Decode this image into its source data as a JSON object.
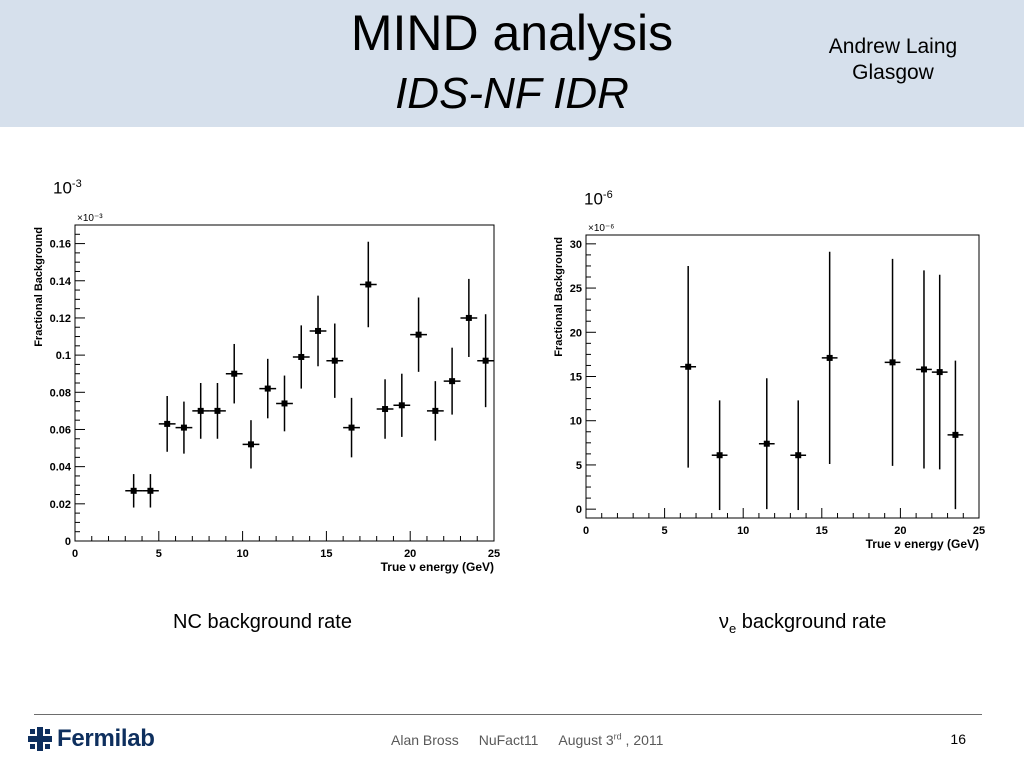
{
  "header": {
    "title": "MIND analysis",
    "subtitle": "IDS-NF IDR",
    "author_name": "Andrew Laing",
    "author_affiliation": "Glasgow"
  },
  "annotations": {
    "left_multiplier_base": "10",
    "left_multiplier_exp": "-3",
    "right_multiplier_base": "10",
    "right_multiplier_exp": "-6"
  },
  "captions": {
    "left": "NC background rate",
    "right_symbol": "ν",
    "right_subscript": "e",
    "right_text": " background rate"
  },
  "footer": {
    "logo_text": "Fermilab",
    "presenter": "Alan Bross",
    "event": "NuFact11",
    "date_prefix": "August 3",
    "date_sup": "rd",
    "date_suffix": " , 2011",
    "page_number": "16"
  },
  "colors": {
    "header_bg": "#d6e0ec",
    "logo_blue": "#0e2f5e",
    "data": "#000000"
  },
  "chart_data": [
    {
      "type": "scatter",
      "title": "",
      "xlabel": "True ν energy (GeV)",
      "ylabel": "Fractional Background",
      "scale_label": "×10⁻³",
      "xlim": [
        0,
        25
      ],
      "ylim": [
        0,
        0.17
      ],
      "xticks": [
        0,
        5,
        10,
        15,
        20,
        25
      ],
      "yticks": [
        0,
        0.02,
        0.04,
        0.06,
        0.08,
        0.1,
        0.12,
        0.14,
        0.16
      ],
      "ytick_labels": [
        "0",
        "0.02",
        "0.04",
        "0.06",
        "0.08",
        "0.1",
        "0.12",
        "0.14",
        "0.16"
      ],
      "series": [
        {
          "points": [
            {
              "x": 3.5,
              "y": 0.027,
              "err": 0.009
            },
            {
              "x": 4.5,
              "y": 0.027,
              "err": 0.009
            },
            {
              "x": 5.5,
              "y": 0.063,
              "err": 0.015
            },
            {
              "x": 6.5,
              "y": 0.061,
              "err": 0.014
            },
            {
              "x": 7.5,
              "y": 0.07,
              "err": 0.015
            },
            {
              "x": 8.5,
              "y": 0.07,
              "err": 0.015
            },
            {
              "x": 9.5,
              "y": 0.09,
              "err": 0.016
            },
            {
              "x": 10.5,
              "y": 0.052,
              "err": 0.013
            },
            {
              "x": 11.5,
              "y": 0.082,
              "err": 0.016
            },
            {
              "x": 12.5,
              "y": 0.074,
              "err": 0.015
            },
            {
              "x": 13.5,
              "y": 0.099,
              "err": 0.017
            },
            {
              "x": 14.5,
              "y": 0.113,
              "err": 0.019
            },
            {
              "x": 15.5,
              "y": 0.097,
              "err": 0.02
            },
            {
              "x": 16.5,
              "y": 0.061,
              "err": 0.016
            },
            {
              "x": 17.5,
              "y": 0.138,
              "err": 0.023
            },
            {
              "x": 18.5,
              "y": 0.071,
              "err": 0.016
            },
            {
              "x": 19.5,
              "y": 0.073,
              "err": 0.017
            },
            {
              "x": 20.5,
              "y": 0.111,
              "err": 0.02
            },
            {
              "x": 21.5,
              "y": 0.07,
              "err": 0.016
            },
            {
              "x": 22.5,
              "y": 0.086,
              "err": 0.018
            },
            {
              "x": 23.5,
              "y": 0.12,
              "err": 0.021
            },
            {
              "x": 24.5,
              "y": 0.097,
              "err": 0.025
            }
          ]
        }
      ]
    },
    {
      "type": "scatter",
      "title": "",
      "xlabel": "True ν energy (GeV)",
      "ylabel": "Fractional Background",
      "scale_label": "×10⁻⁶",
      "xlim": [
        0,
        25
      ],
      "ylim": [
        -1,
        31
      ],
      "xticks": [
        0,
        5,
        10,
        15,
        20,
        25
      ],
      "yticks": [
        0,
        5,
        10,
        15,
        20,
        25,
        30
      ],
      "ytick_labels": [
        "0",
        "5",
        "10",
        "15",
        "20",
        "25",
        "30"
      ],
      "series": [
        {
          "points": [
            {
              "x": 6.5,
              "y": 16.1,
              "err": 11.4
            },
            {
              "x": 8.5,
              "y": 6.1,
              "err": 6.2
            },
            {
              "x": 11.5,
              "y": 7.4,
              "err": 7.4
            },
            {
              "x": 13.5,
              "y": 6.1,
              "err": 6.2
            },
            {
              "x": 15.5,
              "y": 17.1,
              "err": 12.0
            },
            {
              "x": 19.5,
              "y": 16.6,
              "err": 11.7
            },
            {
              "x": 21.5,
              "y": 15.8,
              "err": 11.2
            },
            {
              "x": 22.5,
              "y": 15.5,
              "err": 11.0
            },
            {
              "x": 23.5,
              "y": 8.4,
              "err": 8.4
            }
          ]
        }
      ]
    }
  ]
}
